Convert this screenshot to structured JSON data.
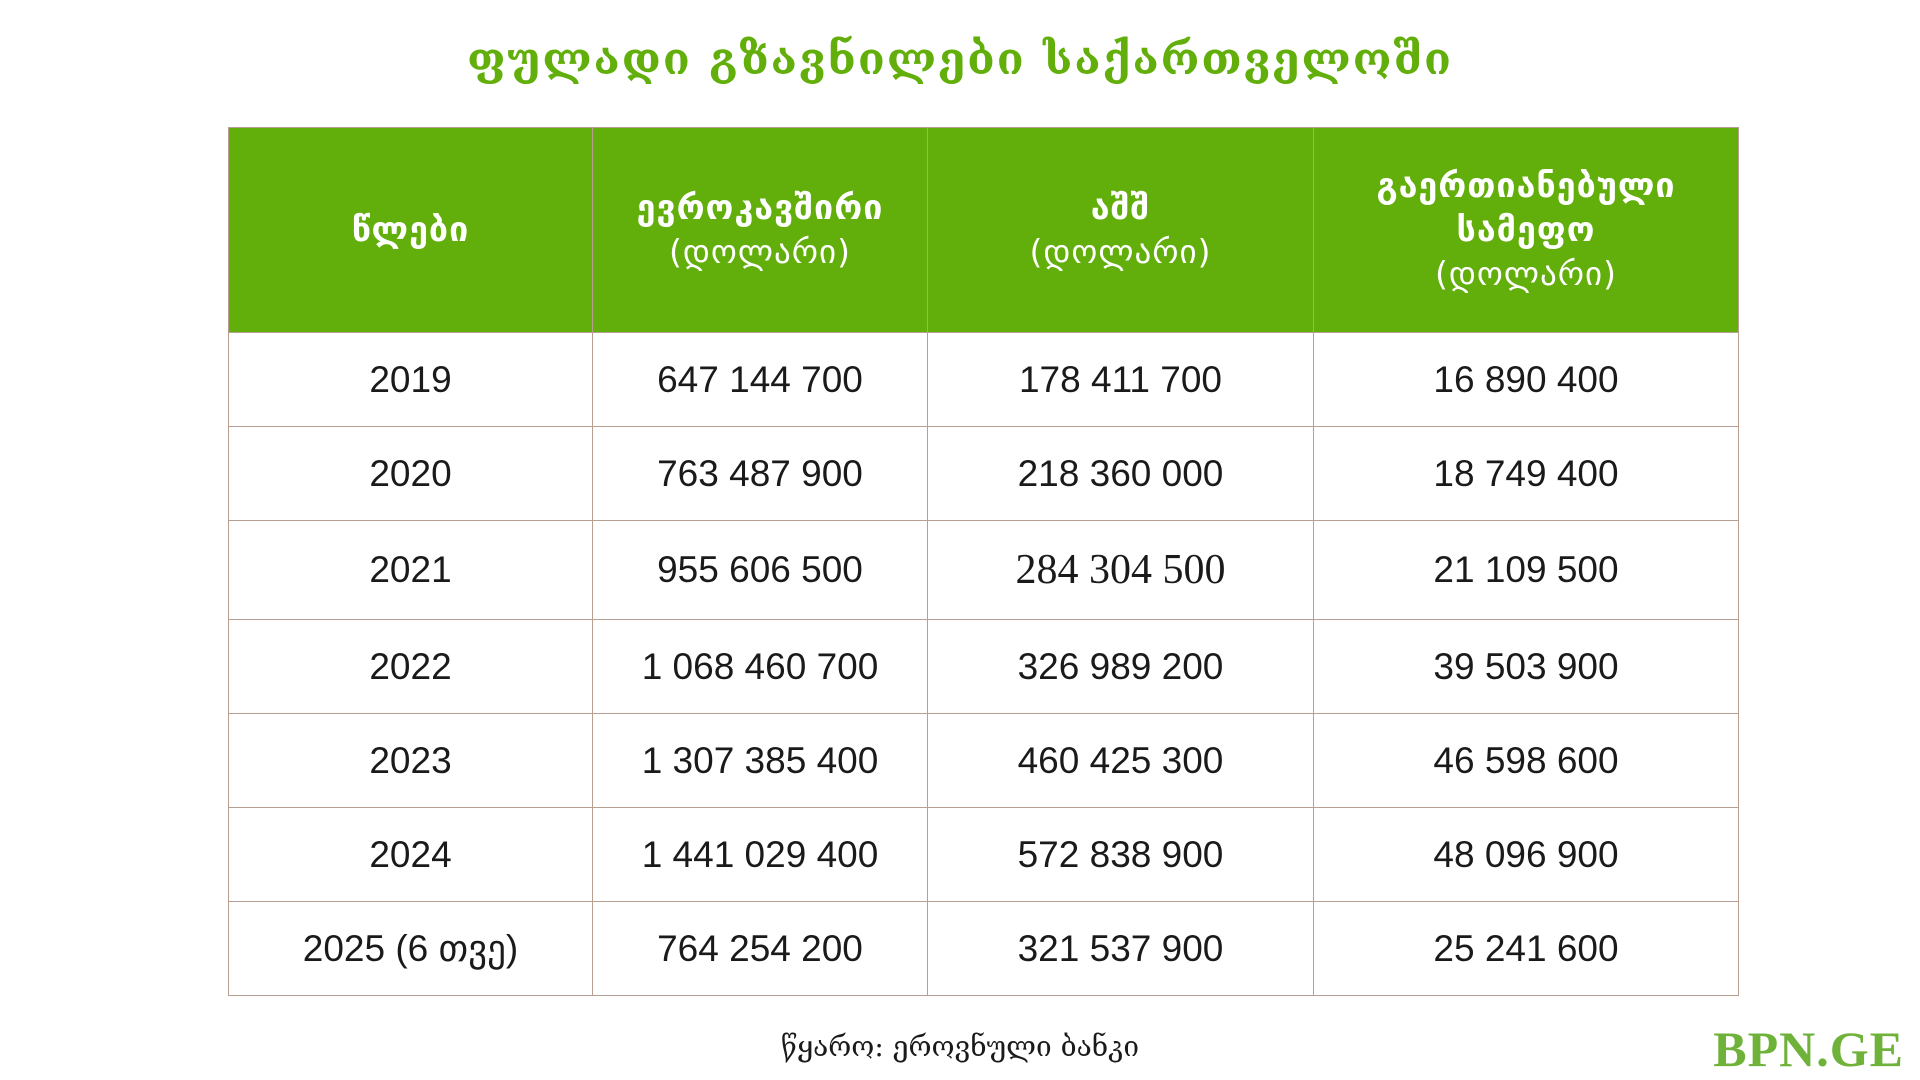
{
  "title": "ფულადი გზავნილები საქართველოში",
  "table": {
    "headers": [
      {
        "label": "წლები",
        "unit": ""
      },
      {
        "label": "ევროკავშირი",
        "unit": "(დოლარი)"
      },
      {
        "label": "აშშ",
        "unit": "(დოლარი)"
      },
      {
        "label": "გაერთიანებული სამეფო",
        "unit": "(დოლარი)"
      }
    ],
    "rows": [
      [
        "2019",
        "647 144 700",
        "178 411 700",
        "16 890 400"
      ],
      [
        "2020",
        "763 487 900",
        "218 360 000",
        "18 749 400"
      ],
      [
        "2021",
        "955 606 500",
        "284 304 500",
        "21 109 500"
      ],
      [
        "2022",
        "1 068 460 700",
        "326 989 200",
        "39 503 900"
      ],
      [
        "2023",
        "1 307 385 400",
        "460 425 300",
        "46 598 600"
      ],
      [
        "2024",
        "1 441 029 400",
        "572 838 900",
        "48 096 900"
      ],
      [
        "2025 (6 თვე)",
        "764 254 200",
        "321 537 900",
        "25 241 600"
      ]
    ]
  },
  "source": "წყარო: ეროვნული ბანკი",
  "brand": "BPN.GE",
  "colors": {
    "accent_green": "#62ae0a",
    "border": "#b79f92",
    "brand_green": "#6fb23a"
  }
}
